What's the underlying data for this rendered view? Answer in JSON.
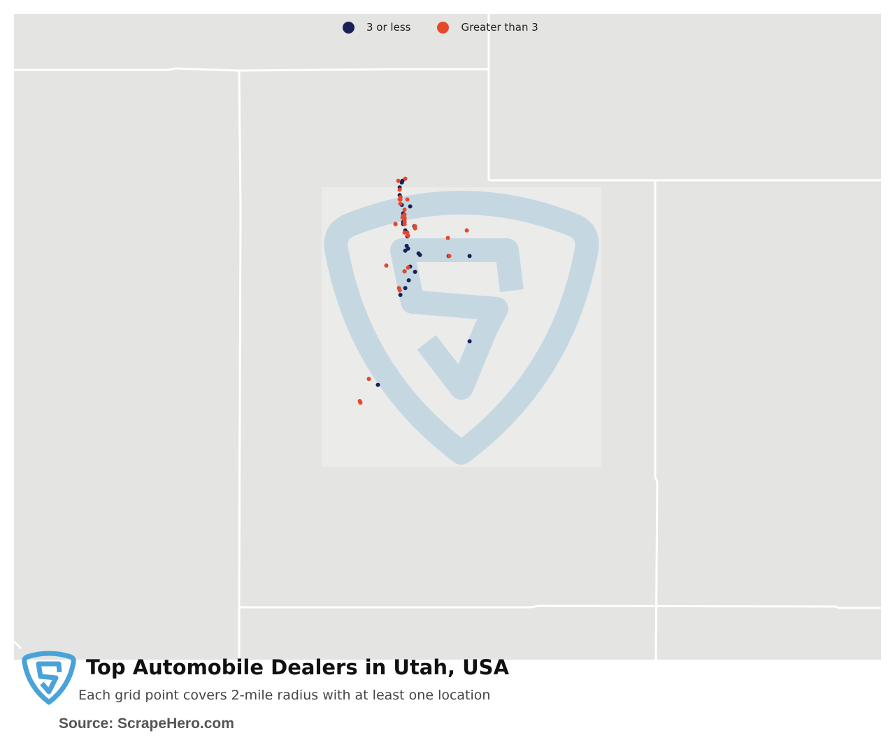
{
  "legend": {
    "items": [
      {
        "label": "3 or less",
        "color": "#1a2157"
      },
      {
        "label": "Greater than 3",
        "color": "#e5482a"
      }
    ]
  },
  "title": "Top Automobile Dealers in Utah, USA",
  "subtitle": "Each grid point covers 2-mile radius with at least one location",
  "source": "Source: ScrapeHero.com",
  "colors": {
    "land": "#e4e4e2",
    "border": "#ffffff",
    "watermark": "#c5d8e2",
    "logo": "#4aa3d8"
  },
  "dealers_low": [
    [
      41.9953,
      -111.9013
    ],
    [
      41.9663,
      -111.921
    ],
    [
      41.8745,
      -111.9802
    ],
    [
      41.7356,
      -111.9802
    ],
    [
      41.7065,
      -111.9605
    ],
    [
      41.5612,
      -111.921
    ],
    [
      41.5321,
      -111.6845
    ],
    [
      41.4064,
      -111.8816
    ],
    [
      41.3581,
      -111.8816
    ],
    [
      41.3291,
      -111.8422
    ],
    [
      41.2517,
      -111.8816
    ],
    [
      41.2131,
      -111.8816
    ],
    [
      41.2131,
      -112.0985
    ],
    [
      41.1744,
      -111.5662
    ],
    [
      41.0971,
      -111.8225
    ],
    [
      41.0778,
      -111.8028
    ],
    [
      40.991,
      -111.7633
    ],
    [
      40.8174,
      -111.7831
    ],
    [
      40.7694,
      -111.7436
    ],
    [
      40.7309,
      -111.8225
    ],
    [
      40.683,
      -111.4479
    ],
    [
      40.6541,
      -111.4085
    ],
    [
      40.635,
      -110.0087
    ],
    [
      40.635,
      -110.5998
    ],
    [
      40.4438,
      -111.6845
    ],
    [
      40.3582,
      -111.8422
    ],
    [
      40.3487,
      -111.5465
    ],
    [
      40.1965,
      -111.7239
    ],
    [
      40.0541,
      -111.8225
    ],
    [
      39.9312,
      -111.9605
    ],
    [
      39.0929,
      -110.0087
    ],
    [
      38.3041,
      -112.5914
    ]
  ],
  "dealers_high": [
    [
      42.0339,
      -111.8225
    ],
    [
      41.9953,
      -112.0197
    ],
    [
      41.8359,
      -111.9802
    ],
    [
      41.6967,
      -111.9605
    ],
    [
      41.6967,
      -111.9605
    ],
    [
      41.6578,
      -111.7633
    ],
    [
      41.6578,
      -111.9802
    ],
    [
      41.6578,
      -111.9605
    ],
    [
      41.5807,
      -111.9605
    ],
    [
      41.4742,
      -111.8422
    ],
    [
      41.3871,
      -111.8422
    ],
    [
      41.3581,
      -111.8816
    ],
    [
      41.3291,
      -111.8816
    ],
    [
      41.3291,
      -111.8422
    ],
    [
      41.3291,
      -111.9013
    ],
    [
      41.2904,
      -111.8422
    ],
    [
      41.2517,
      -111.8422
    ],
    [
      41.2131,
      -112.0985
    ],
    [
      41.2131,
      -111.8422
    ],
    [
      41.1744,
      -111.5465
    ],
    [
      41.1358,
      -111.5465
    ],
    [
      41.0971,
      -110.0876
    ],
    [
      41.0584,
      -111.8422
    ],
    [
      41.0584,
      -111.7633
    ],
    [
      41.0007,
      -111.7436
    ],
    [
      40.9623,
      -110.6195
    ],
    [
      40.635,
      -110.5801
    ],
    [
      40.4247,
      -111.7436
    ],
    [
      40.3582,
      -111.8422
    ],
    [
      40.4629,
      -112.3549
    ],
    [
      40.0147,
      -111.9802
    ],
    [
      40.0541,
      -112.0
    ],
    [
      38.4116,
      -112.8476
    ],
    [
      37.9811,
      -113.0843
    ],
    [
      38.0103,
      -113.104
    ]
  ]
}
